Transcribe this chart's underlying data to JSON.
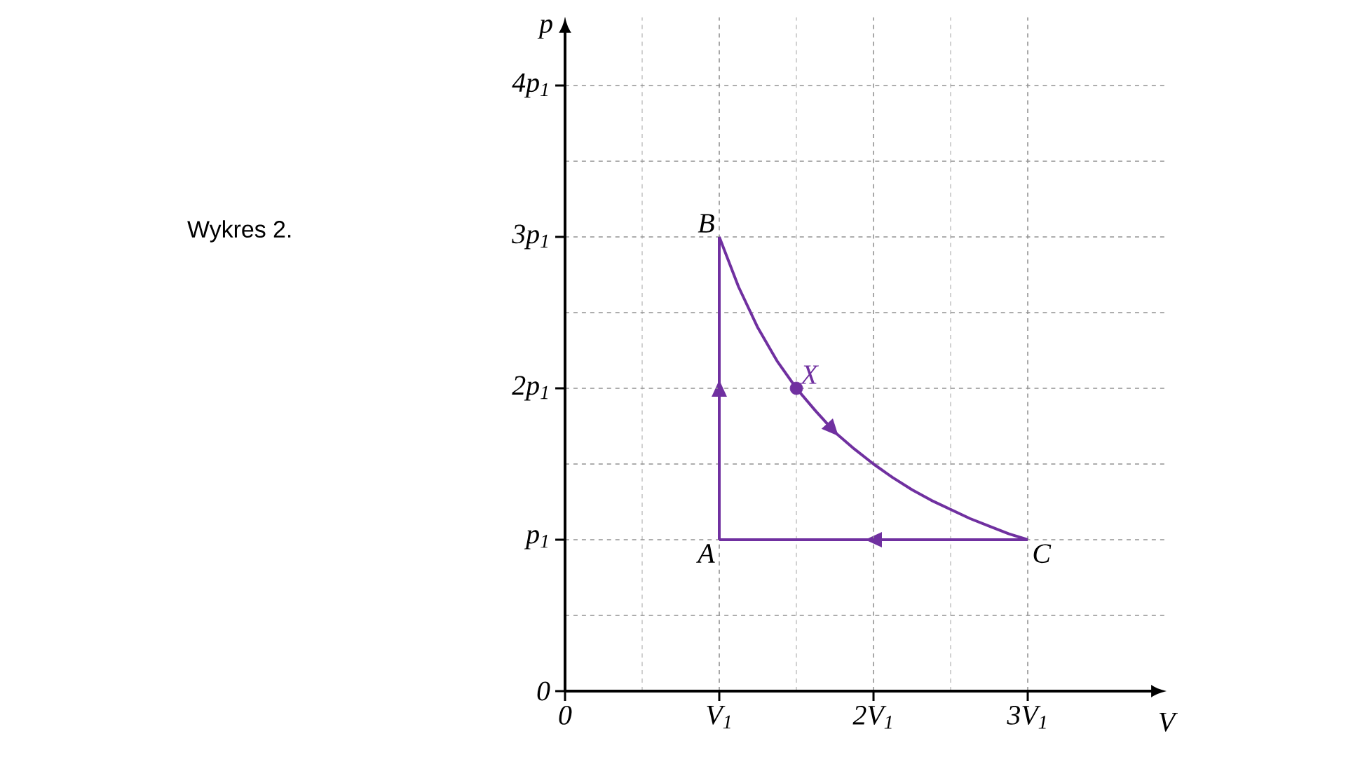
{
  "chart_data": {
    "type": "line",
    "xlabel": "V",
    "ylabel": "p",
    "xlim": [
      0,
      3.9
    ],
    "ylim": [
      0,
      4.45
    ],
    "xticks": [
      0,
      {
        "value": 1,
        "label": "V$_{1}$"
      },
      {
        "value": 2,
        "label": "2V$_{1}$"
      },
      {
        "value": 3,
        "label": "3V$_{1}$"
      }
    ],
    "yticks": [
      0,
      {
        "value": 1,
        "label": "p$_{1}$"
      },
      {
        "value": 2,
        "label": "2p$_{1}$"
      },
      {
        "value": 3,
        "label": "3p$_{1}$"
      },
      {
        "value": 4,
        "label": "4p$_{1}$"
      }
    ],
    "grid": true,
    "series": [
      {
        "color": "#7030a0",
        "x": [
          1,
          1
        ],
        "values": [
          1,
          3
        ]
      },
      {
        "color": "#7030a0",
        "x": [
          1,
          1.125,
          1.25,
          1.375,
          1.5,
          1.625,
          1.75,
          1.875,
          2,
          2.125,
          2.25,
          2.375,
          2.5,
          2.625,
          2.75,
          2.875,
          3
        ],
        "values": [
          3,
          2.67,
          2.4,
          2.18,
          2,
          1.85,
          1.71,
          1.6,
          1.5,
          1.41,
          1.33,
          1.26,
          1.2,
          1.14,
          1.09,
          1.04,
          1
        ]
      },
      {
        "color": "#7030a0",
        "x": [
          3,
          1
        ],
        "values": [
          1,
          1
        ]
      },
      {
        "type": "scatter",
        "color": "#7030a0",
        "marker": "circle",
        "x": [
          1.5
        ],
        "values": [
          2
        ]
      }
    ],
    "annotations": [
      "Wykres 2.",
      {
        "text": "A",
        "x": 1,
        "y": 1
      },
      {
        "text": "B",
        "x": 1,
        "y": 3
      },
      {
        "text": "C",
        "x": 3,
        "y": 1
      },
      {
        "text": "X",
        "x": 1.5,
        "y": 2
      }
    ]
  }
}
